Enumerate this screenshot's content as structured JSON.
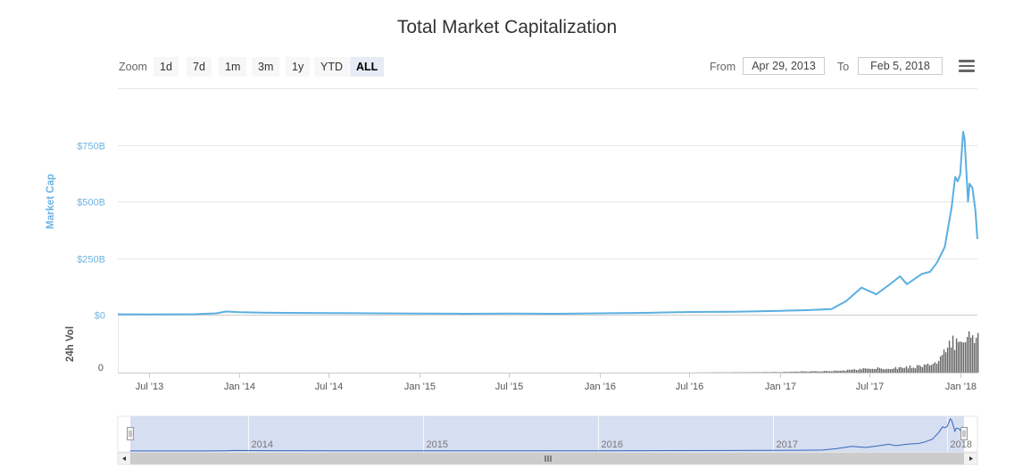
{
  "title": "Total Market Capitalization",
  "toolbar": {
    "zoom_label": "Zoom",
    "zoom_buttons": [
      "1d",
      "7d",
      "1m",
      "3m",
      "1y",
      "YTD",
      "ALL"
    ],
    "active_zoom": "ALL",
    "from_label": "From",
    "from_value": "Apr 29, 2013",
    "to_label": "To",
    "to_value": "Feb 5, 2018"
  },
  "colors": {
    "line": "#5aafe0",
    "volume": "#666666",
    "axis_label": "#6cb4e4",
    "navigator_mask": "#d2daf0"
  },
  "chart_data": {
    "type": "line",
    "title": "Total Market Capitalization",
    "series": [
      {
        "name": "Market Cap",
        "unit": "USD billions",
        "x": [
          "2013-04-29",
          "2013-07-01",
          "2013-10-01",
          "2013-11-15",
          "2013-12-04",
          "2014-01-01",
          "2014-02-15",
          "2014-04-01",
          "2014-07-01",
          "2014-10-01",
          "2015-01-01",
          "2015-04-01",
          "2015-07-01",
          "2015-10-01",
          "2016-01-01",
          "2016-04-01",
          "2016-07-01",
          "2016-10-01",
          "2017-01-01",
          "2017-03-01",
          "2017-04-15",
          "2017-05-15",
          "2017-06-15",
          "2017-07-15",
          "2017-08-15",
          "2017-09-01",
          "2017-09-15",
          "2017-10-15",
          "2017-11-01",
          "2017-11-15",
          "2017-12-01",
          "2017-12-15",
          "2017-12-22",
          "2017-12-27",
          "2018-01-01",
          "2018-01-07",
          "2018-01-10",
          "2018-01-17",
          "2018-01-20",
          "2018-01-26",
          "2018-02-01",
          "2018-02-05"
        ],
        "values": [
          1.5,
          1.2,
          2,
          6,
          14,
          11,
          9,
          8,
          7,
          6,
          5,
          4,
          5,
          4,
          6,
          8,
          12,
          13,
          17,
          20,
          25,
          60,
          120,
          90,
          140,
          170,
          135,
          180,
          190,
          230,
          300,
          480,
          610,
          590,
          620,
          810,
          780,
          500,
          580,
          560,
          460,
          335
        ]
      },
      {
        "name": "24h Vol",
        "unit": "relative",
        "x": [
          "2013-04-29",
          "2014-06-01",
          "2015-06-01",
          "2016-06-01",
          "2017-01-01",
          "2017-05-01",
          "2017-06-15",
          "2017-08-15",
          "2017-10-01",
          "2017-11-15",
          "2017-12-15",
          "2018-01-07",
          "2018-01-20",
          "2018-02-05"
        ],
        "values": [
          0,
          0,
          0,
          0,
          0.5,
          1.5,
          3,
          4,
          5,
          8,
          25,
          32,
          28,
          30
        ]
      }
    ],
    "y_axis": {
      "label": "Market Cap",
      "ticks": [
        "$0",
        "$250B",
        "$500B",
        "$750B"
      ],
      "tick_values": [
        0,
        250,
        500,
        750
      ],
      "ylim": [
        0,
        750
      ]
    },
    "volume_axis": {
      "label": "24h Vol",
      "ticks": [
        "0"
      ]
    },
    "x_axis": {
      "ticks": [
        "Jul '13",
        "Jan '14",
        "Jul '14",
        "Jan '15",
        "Jul '15",
        "Jan '16",
        "Jul '16",
        "Jan '17",
        "Jul '17",
        "Jan '18"
      ],
      "tick_dates": [
        "2013-07-01",
        "2014-01-01",
        "2014-07-01",
        "2015-01-01",
        "2015-07-01",
        "2016-01-01",
        "2016-07-01",
        "2017-01-01",
        "2017-07-01",
        "2018-01-01"
      ],
      "range": [
        "2013-04-29",
        "2018-02-05"
      ]
    },
    "navigator": {
      "labels": [
        "2014",
        "2015",
        "2016",
        "2017",
        "2018"
      ],
      "label_dates": [
        "2014-01-01",
        "2015-01-01",
        "2016-01-01",
        "2017-01-01",
        "2018-01-01"
      ]
    },
    "grid": true,
    "legend": "none"
  }
}
